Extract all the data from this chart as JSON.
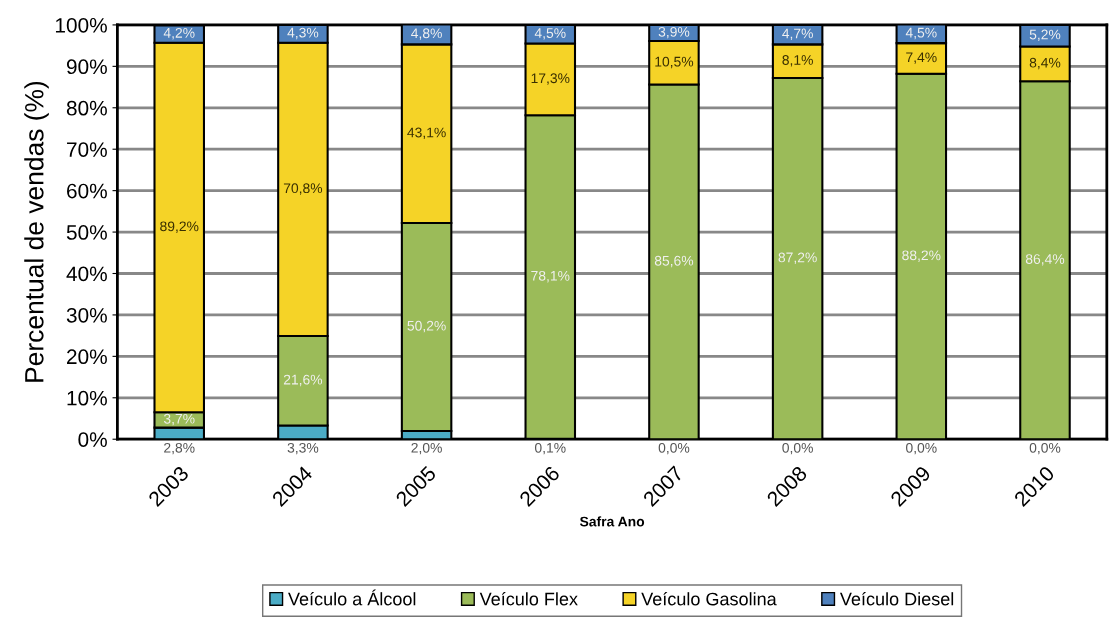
{
  "chart_data": {
    "type": "bar",
    "stacked": true,
    "xlabel": "Safra Ano",
    "ylabel": "Percentual de vendas (%)",
    "categories": [
      "2003",
      "2004",
      "2005",
      "2006",
      "2007",
      "2008",
      "2009",
      "2010"
    ],
    "series": [
      {
        "name": "Veículo a Álcool",
        "color": "#4bacc6",
        "values": [
          2.8,
          3.3,
          2.0,
          0.1,
          0.0,
          0.0,
          0.0,
          0.0
        ],
        "value_labels": [
          "2,8%",
          "3,3%",
          "2,0%",
          "0,1%",
          "0,0%",
          "0,0%",
          "0,0%",
          "0,0%"
        ]
      },
      {
        "name": "Veículo Flex",
        "color": "#9bbb59",
        "values": [
          3.7,
          21.6,
          50.2,
          78.1,
          85.6,
          87.2,
          88.2,
          86.4
        ],
        "value_labels": [
          "3,7%",
          "21,6%",
          "50,2%",
          "78,1%",
          "85,6%",
          "87,2%",
          "88,2%",
          "86,4%"
        ]
      },
      {
        "name": "Veículo Gasolina",
        "color": "#f5d327",
        "values": [
          89.2,
          70.8,
          43.1,
          17.3,
          10.5,
          8.1,
          7.4,
          8.4
        ],
        "value_labels": [
          "89,2%",
          "70,8%",
          "43,1%",
          "17,3%",
          "10,5%",
          "8,1%",
          "7,4%",
          "8,4%"
        ]
      },
      {
        "name": "Veículo Diesel",
        "color": "#4f81bd",
        "values": [
          4.2,
          4.3,
          4.8,
          4.5,
          3.9,
          4.7,
          4.5,
          5.2
        ],
        "value_labels": [
          "4,2%",
          "4,3%",
          "4,8%",
          "4,5%",
          "3,9%",
          "4,7%",
          "4,5%",
          "5,2%"
        ]
      }
    ],
    "ylim": [
      0,
      100
    ],
    "yticks": [
      {
        "value": 0,
        "label": "0%"
      },
      {
        "value": 10,
        "label": "10%"
      },
      {
        "value": 20,
        "label": "20%"
      },
      {
        "value": 30,
        "label": "30%"
      },
      {
        "value": 40,
        "label": "40%"
      },
      {
        "value": 50,
        "label": "50%"
      },
      {
        "value": 60,
        "label": "60%"
      },
      {
        "value": 70,
        "label": "70%"
      },
      {
        "value": 80,
        "label": "80%"
      },
      {
        "value": 90,
        "label": "90%"
      },
      {
        "value": 100,
        "label": "100%"
      }
    ],
    "grid": "y",
    "legend": "bottom"
  }
}
